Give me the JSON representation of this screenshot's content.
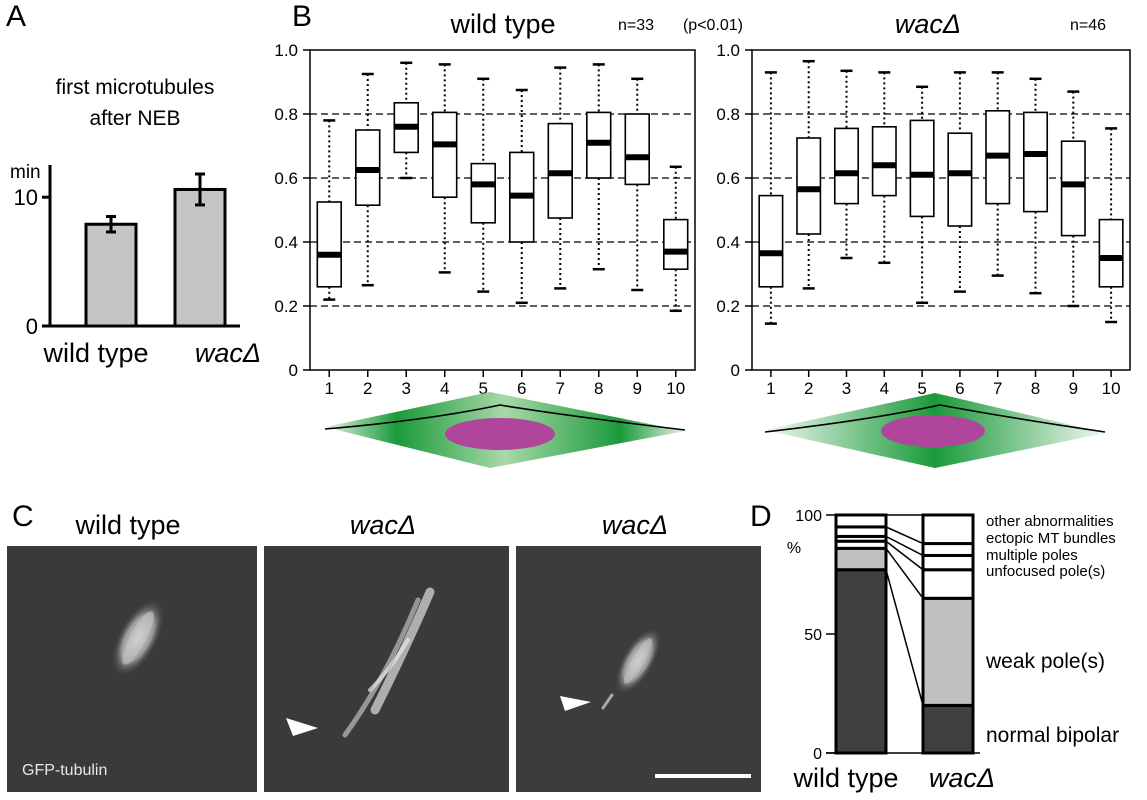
{
  "panels": {
    "A": {
      "letter": "A",
      "title_lines": [
        "first microtubules",
        "after NEB"
      ],
      "unit": "min"
    },
    "B": {
      "letter": "B",
      "wt_title": "wild type",
      "wt_n": "n=33",
      "p_value": "(p<0.01)",
      "mut_title": "wacΔ",
      "mut_n": "n=46"
    },
    "C": {
      "letter": "C",
      "titles": [
        "wild type",
        "wacΔ",
        "wacΔ"
      ],
      "stain_label": "GFP-tubulin"
    },
    "D": {
      "letter": "D",
      "unit": "%"
    }
  },
  "colors": {
    "bar_fill": "#c4c4c4",
    "dark_gray": "#404040",
    "light_gray": "#c0c0c0",
    "spindle_green": "#1a9a3a",
    "nucleus_magenta": "#b0459c"
  },
  "chart_data": [
    {
      "type": "bar",
      "panel": "A",
      "title": "first microtubules after NEB",
      "ylabel": "min",
      "categories": [
        "wild type",
        "wacΔ"
      ],
      "values": [
        7.9,
        10.6
      ],
      "errors": [
        0.6,
        1.2
      ],
      "ylim": [
        0,
        12.5
      ],
      "yticks": [
        "0",
        "10"
      ],
      "ytick_values": [
        0,
        10
      ]
    },
    {
      "type": "box",
      "panel": "B",
      "title": "wild type",
      "n": "n=33",
      "x": [
        "1",
        "2",
        "3",
        "4",
        "5",
        "6",
        "7",
        "8",
        "9",
        "10"
      ],
      "ylim": [
        0,
        1.0
      ],
      "yticks": [
        "0",
        "0.2",
        "0.4",
        "0.6",
        "0.8",
        "1.0"
      ],
      "ytick_values": [
        0,
        0.2,
        0.4,
        0.6,
        0.8,
        1.0
      ],
      "gridlines": [
        0.2,
        0.4,
        0.6,
        0.8
      ],
      "boxes": [
        {
          "min": 0.22,
          "q1": 0.26,
          "median": 0.36,
          "q3": 0.525,
          "max": 0.78
        },
        {
          "min": 0.265,
          "q1": 0.515,
          "median": 0.625,
          "q3": 0.75,
          "max": 0.925
        },
        {
          "min": 0.6,
          "q1": 0.68,
          "median": 0.76,
          "q3": 0.835,
          "max": 0.96
        },
        {
          "min": 0.305,
          "q1": 0.54,
          "median": 0.705,
          "q3": 0.805,
          "max": 0.955
        },
        {
          "min": 0.245,
          "q1": 0.46,
          "median": 0.58,
          "q3": 0.645,
          "max": 0.91
        },
        {
          "min": 0.21,
          "q1": 0.4,
          "median": 0.545,
          "q3": 0.68,
          "max": 0.875
        },
        {
          "min": 0.255,
          "q1": 0.475,
          "median": 0.615,
          "q3": 0.77,
          "max": 0.945
        },
        {
          "min": 0.315,
          "q1": 0.6,
          "median": 0.71,
          "q3": 0.805,
          "max": 0.955
        },
        {
          "min": 0.25,
          "q1": 0.58,
          "median": 0.665,
          "q3": 0.8,
          "max": 0.91
        },
        {
          "min": 0.185,
          "q1": 0.315,
          "median": 0.37,
          "q3": 0.47,
          "max": 0.635
        }
      ]
    },
    {
      "type": "box",
      "panel": "B",
      "title": "wacΔ",
      "n": "n=46",
      "x": [
        "1",
        "2",
        "3",
        "4",
        "5",
        "6",
        "7",
        "8",
        "9",
        "10"
      ],
      "ylim": [
        0,
        1.0
      ],
      "yticks": [
        "0",
        "0.2",
        "0.4",
        "0.6",
        "0.8",
        "1.0"
      ],
      "ytick_values": [
        0,
        0.2,
        0.4,
        0.6,
        0.8,
        1.0
      ],
      "gridlines": [
        0.2,
        0.4,
        0.6,
        0.8
      ],
      "boxes": [
        {
          "min": 0.145,
          "q1": 0.26,
          "median": 0.365,
          "q3": 0.545,
          "max": 0.93
        },
        {
          "min": 0.255,
          "q1": 0.425,
          "median": 0.565,
          "q3": 0.725,
          "max": 0.965
        },
        {
          "min": 0.35,
          "q1": 0.52,
          "median": 0.615,
          "q3": 0.755,
          "max": 0.935
        },
        {
          "min": 0.335,
          "q1": 0.545,
          "median": 0.64,
          "q3": 0.76,
          "max": 0.93
        },
        {
          "min": 0.21,
          "q1": 0.48,
          "median": 0.61,
          "q3": 0.78,
          "max": 0.885
        },
        {
          "min": 0.245,
          "q1": 0.45,
          "median": 0.615,
          "q3": 0.74,
          "max": 0.93
        },
        {
          "min": 0.295,
          "q1": 0.52,
          "median": 0.67,
          "q3": 0.81,
          "max": 0.93
        },
        {
          "min": 0.24,
          "q1": 0.495,
          "median": 0.675,
          "q3": 0.805,
          "max": 0.91
        },
        {
          "min": 0.2,
          "q1": 0.42,
          "median": 0.58,
          "q3": 0.715,
          "max": 0.87
        },
        {
          "min": 0.15,
          "q1": 0.26,
          "median": 0.35,
          "q3": 0.47,
          "max": 0.755
        }
      ]
    },
    {
      "type": "bar",
      "stacked": true,
      "panel": "D",
      "ylabel": "%",
      "categories": [
        "wild type",
        "wacΔ"
      ],
      "ylim": [
        0,
        100
      ],
      "yticks": [
        "0",
        "50",
        "100"
      ],
      "ytick_values": [
        0,
        50,
        100
      ],
      "series": [
        {
          "name": "normal bipolar",
          "values": [
            77,
            20
          ],
          "color": "#404040"
        },
        {
          "name": "weak pole(s)",
          "values": [
            9,
            45
          ],
          "color": "#c0c0c0"
        },
        {
          "name": "unfocused pole(s)",
          "values": [
            3,
            12
          ],
          "color": "#ffffff"
        },
        {
          "name": "multiple poles",
          "values": [
            2,
            6
          ],
          "color": "#ffffff"
        },
        {
          "name": "ectopic MT bundles",
          "values": [
            4,
            5
          ],
          "color": "#ffffff"
        },
        {
          "name": "other abnormalities",
          "values": [
            5,
            12
          ],
          "color": "#ffffff"
        }
      ]
    }
  ]
}
